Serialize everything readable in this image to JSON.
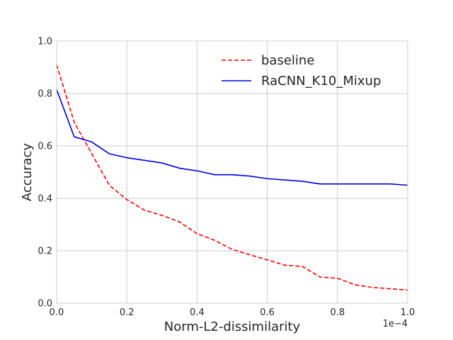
{
  "chart_data": {
    "type": "line",
    "xlabel": "Norm-L2-dissimilarity",
    "ylabel": "Accuracy",
    "x_offset_label": "1e−4",
    "xlim": [
      0,
      1.0
    ],
    "ylim": [
      0,
      1.0
    ],
    "xticks": [
      0.0,
      0.2,
      0.4,
      0.6,
      0.8,
      1.0
    ],
    "xtick_labels": [
      "0.0",
      "0.2",
      "0.4",
      "0.6",
      "0.8",
      "1.0"
    ],
    "yticks": [
      0.0,
      0.2,
      0.4,
      0.6,
      0.8,
      1.0
    ],
    "ytick_labels": [
      "0.0",
      "0.2",
      "0.4",
      "0.6",
      "0.8",
      "1.0"
    ],
    "grid": true,
    "legend_position": "top-right",
    "series": [
      {
        "name": "baseline",
        "color": "#ff0000",
        "style": "dashed",
        "x": [
          0.0,
          0.05,
          0.1,
          0.15,
          0.2,
          0.25,
          0.3,
          0.35,
          0.4,
          0.45,
          0.5,
          0.55,
          0.6,
          0.65,
          0.7,
          0.75,
          0.8,
          0.85,
          0.9,
          0.95,
          1.0
        ],
        "y": [
          0.91,
          0.69,
          0.57,
          0.45,
          0.395,
          0.355,
          0.335,
          0.31,
          0.265,
          0.24,
          0.205,
          0.185,
          0.165,
          0.145,
          0.14,
          0.1,
          0.095,
          0.07,
          0.06,
          0.055,
          0.05
        ]
      },
      {
        "name": "RaCNN_K10_Mixup",
        "color": "#0000dd",
        "style": "solid",
        "x": [
          0.0,
          0.05,
          0.1,
          0.15,
          0.2,
          0.25,
          0.3,
          0.35,
          0.4,
          0.45,
          0.5,
          0.55,
          0.6,
          0.65,
          0.7,
          0.75,
          0.8,
          0.85,
          0.9,
          0.95,
          1.0
        ],
        "y": [
          0.815,
          0.635,
          0.615,
          0.57,
          0.555,
          0.545,
          0.535,
          0.515,
          0.505,
          0.49,
          0.49,
          0.485,
          0.475,
          0.47,
          0.465,
          0.455,
          0.455,
          0.455,
          0.455,
          0.455,
          0.45
        ]
      }
    ]
  }
}
